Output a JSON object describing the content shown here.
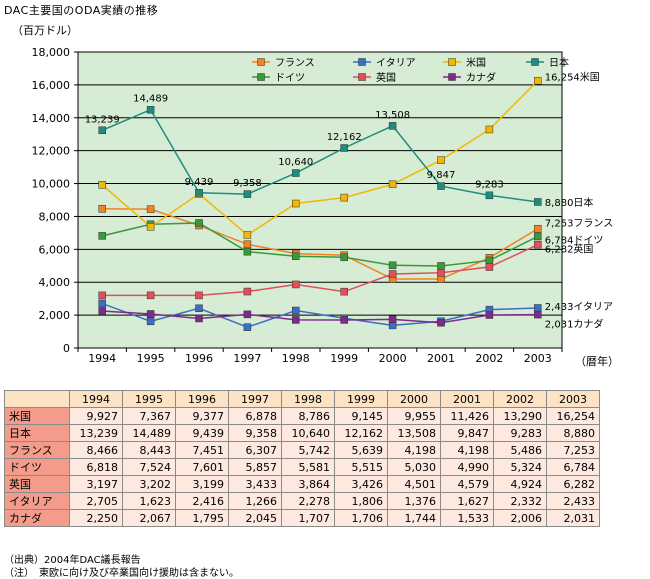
{
  "title": "DAC主要国のODA実績の推移",
  "yunit": "（百万ドル）",
  "xunit": "（暦年）",
  "colors": {
    "plot_bg": "#d6ecd4",
    "grid": "#000000",
    "米国": "#f2b700",
    "日本": "#1f8c7e",
    "フランス": "#f5821f",
    "ドイツ": "#3a9a3a",
    "英国": "#e0505a",
    "イタリア": "#3a6fc2",
    "カナダ": "#7d2a8c"
  },
  "chart_data": {
    "type": "line",
    "x": [
      "1994",
      "1995",
      "1996",
      "1997",
      "1998",
      "1999",
      "2000",
      "2001",
      "2002",
      "2003"
    ],
    "ylim": [
      0,
      18000
    ],
    "yticks": [
      "0",
      "2,000",
      "4,000",
      "6,000",
      "8,000",
      "10,000",
      "12,000",
      "14,000",
      "16,000",
      "18,000"
    ],
    "grid": true,
    "legend_position": "top-right",
    "series": [
      {
        "name": "フランス",
        "values": [
          8466,
          8443,
          7451,
          6307,
          5742,
          5639,
          4198,
          4198,
          5486,
          7253
        ]
      },
      {
        "name": "ドイツ",
        "values": [
          6818,
          7524,
          7601,
          5857,
          5581,
          5515,
          5030,
          4990,
          5324,
          6784
        ]
      },
      {
        "name": "イタリア",
        "values": [
          2705,
          1623,
          2416,
          1266,
          2278,
          1806,
          1376,
          1627,
          2332,
          2433
        ]
      },
      {
        "name": "英国",
        "values": [
          3197,
          3202,
          3199,
          3433,
          3864,
          3426,
          4501,
          4579,
          4924,
          6282
        ]
      },
      {
        "name": "米国",
        "values": [
          9927,
          7367,
          9377,
          6878,
          8786,
          9145,
          9955,
          11426,
          13290,
          16254
        ]
      },
      {
        "name": "カナダ",
        "values": [
          2250,
          2067,
          1795,
          2045,
          1707,
          1706,
          1744,
          1533,
          2006,
          2031
        ]
      },
      {
        "name": "日本",
        "values": [
          13239,
          14489,
          9439,
          9358,
          10640,
          12162,
          13508,
          9847,
          9283,
          8880
        ]
      }
    ],
    "annotations": [
      {
        "series": "日本",
        "index": 0,
        "text": "13,239"
      },
      {
        "series": "日本",
        "index": 1,
        "text": "14,489"
      },
      {
        "series": "日本",
        "index": 2,
        "text": "9,439"
      },
      {
        "series": "日本",
        "index": 3,
        "text": "9,358"
      },
      {
        "series": "日本",
        "index": 4,
        "text": "10,640"
      },
      {
        "series": "日本",
        "index": 5,
        "text": "12,162"
      },
      {
        "series": "日本",
        "index": 6,
        "text": "13,508"
      },
      {
        "series": "日本",
        "index": 7,
        "text": "9,847"
      },
      {
        "series": "日本",
        "index": 8,
        "text": "9,283"
      }
    ],
    "end_labels": [
      {
        "series": "米国",
        "text": "16,254米国"
      },
      {
        "series": "日本",
        "text": "8,880日本"
      },
      {
        "series": "フランス",
        "text": "7,253フランス"
      },
      {
        "series": "ドイツ",
        "text": "6,784ドイツ"
      },
      {
        "series": "英国",
        "text": "6,282英国"
      },
      {
        "series": "イタリア",
        "text": "2,433イタリア"
      },
      {
        "series": "カナダ",
        "text": "2,031カナダ"
      }
    ]
  },
  "table": {
    "years": [
      "1994",
      "1995",
      "1996",
      "1997",
      "1998",
      "1999",
      "2000",
      "2001",
      "2002",
      "2003"
    ],
    "rows": [
      {
        "name": "米国",
        "values": [
          "9,927",
          "7,367",
          "9,377",
          "6,878",
          "8,786",
          "9,145",
          "9,955",
          "11,426",
          "13,290",
          "16,254"
        ]
      },
      {
        "name": "日本",
        "values": [
          "13,239",
          "14,489",
          "9,439",
          "9,358",
          "10,640",
          "12,162",
          "13,508",
          "9,847",
          "9,283",
          "8,880"
        ]
      },
      {
        "name": "フランス",
        "values": [
          "8,466",
          "8,443",
          "7,451",
          "6,307",
          "5,742",
          "5,639",
          "4,198",
          "4,198",
          "5,486",
          "7,253"
        ]
      },
      {
        "name": "ドイツ",
        "values": [
          "6,818",
          "7,524",
          "7,601",
          "5,857",
          "5,581",
          "5,515",
          "5,030",
          "4,990",
          "5,324",
          "6,784"
        ]
      },
      {
        "name": "英国",
        "values": [
          "3,197",
          "3,202",
          "3,199",
          "3,433",
          "3,864",
          "3,426",
          "4,501",
          "4,579",
          "4,924",
          "6,282"
        ]
      },
      {
        "name": "イタリア",
        "values": [
          "2,705",
          "1,623",
          "2,416",
          "1,266",
          "2,278",
          "1,806",
          "1,376",
          "1,627",
          "2,332",
          "2,433"
        ]
      },
      {
        "name": "カナダ",
        "values": [
          "2,250",
          "2,067",
          "1,795",
          "2,045",
          "1,707",
          "1,706",
          "1,744",
          "1,533",
          "2,006",
          "2,031"
        ]
      }
    ]
  },
  "notes": {
    "source": "（出典）2004年DAC議長報告",
    "note": "（注）　東欧に向け及び卒業国向け援助は含まない。"
  }
}
